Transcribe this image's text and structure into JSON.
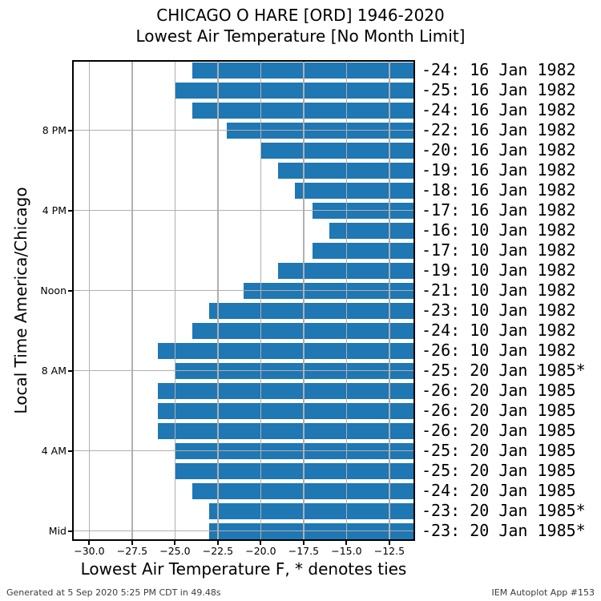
{
  "header": {
    "title": "CHICAGO O HARE [ORD] 1946-2020",
    "subtitle": "Lowest Air Temperature [No Month Limit]"
  },
  "footer": {
    "left": "Generated at 5 Sep 2020 5:25 PM CDT in 49.48s",
    "right": "IEM Autoplot App #153"
  },
  "chart_data": {
    "type": "bar",
    "orientation": "horizontal",
    "title": "CHICAGO O HARE [ORD] 1946-2020",
    "subtitle": "Lowest Air Temperature [No Month Limit]",
    "xlabel": "Lowest Air Temperature F, * denotes ties",
    "ylabel": "Local Time America/Chicago",
    "xlim": [
      -31,
      -11
    ],
    "grid": true,
    "legend": "none",
    "bar_color": "#1f77b4",
    "grid_color": "#b0b0b0",
    "xticks": [
      -30.0,
      -27.5,
      -25.0,
      -22.5,
      -20.0,
      -17.5,
      -15.0,
      -12.5
    ],
    "xtick_labels": [
      "−30.0",
      "−27.5",
      "−25.0",
      "−22.5",
      "−20.0",
      "−17.5",
      "−15.0",
      "−12.5"
    ],
    "yticks": [
      {
        "hour": 20,
        "label": "8 PM"
      },
      {
        "hour": 16,
        "label": "4 PM"
      },
      {
        "hour": 12,
        "label": "Noon"
      },
      {
        "hour": 8,
        "label": "8 AM"
      },
      {
        "hour": 4,
        "label": "4 AM"
      },
      {
        "hour": 0,
        "label": "Mid"
      }
    ],
    "rows": [
      {
        "hour": 23,
        "value": -24,
        "label": "-24: 16 Jan 1982"
      },
      {
        "hour": 22,
        "value": -25,
        "label": "-25: 16 Jan 1982"
      },
      {
        "hour": 21,
        "value": -24,
        "label": "-24: 16 Jan 1982"
      },
      {
        "hour": 20,
        "value": -22,
        "label": "-22: 16 Jan 1982"
      },
      {
        "hour": 19,
        "value": -20,
        "label": "-20: 16 Jan 1982"
      },
      {
        "hour": 18,
        "value": -19,
        "label": "-19: 16 Jan 1982"
      },
      {
        "hour": 17,
        "value": -18,
        "label": "-18: 16 Jan 1982"
      },
      {
        "hour": 16,
        "value": -17,
        "label": "-17: 16 Jan 1982"
      },
      {
        "hour": 15,
        "value": -16,
        "label": "-16: 10 Jan 1982"
      },
      {
        "hour": 14,
        "value": -17,
        "label": "-17: 10 Jan 1982"
      },
      {
        "hour": 13,
        "value": -19,
        "label": "-19: 10 Jan 1982"
      },
      {
        "hour": 12,
        "value": -21,
        "label": "-21: 10 Jan 1982"
      },
      {
        "hour": 11,
        "value": -23,
        "label": "-23: 10 Jan 1982"
      },
      {
        "hour": 10,
        "value": -24,
        "label": "-24: 10 Jan 1982"
      },
      {
        "hour": 9,
        "value": -26,
        "label": "-26: 10 Jan 1982"
      },
      {
        "hour": 8,
        "value": -25,
        "label": "-25: 20 Jan 1985*"
      },
      {
        "hour": 7,
        "value": -26,
        "label": "-26: 20 Jan 1985"
      },
      {
        "hour": 6,
        "value": -26,
        "label": "-26: 20 Jan 1985"
      },
      {
        "hour": 5,
        "value": -26,
        "label": "-26: 20 Jan 1985"
      },
      {
        "hour": 4,
        "value": -25,
        "label": "-25: 20 Jan 1985"
      },
      {
        "hour": 3,
        "value": -25,
        "label": "-25: 20 Jan 1985"
      },
      {
        "hour": 2,
        "value": -24,
        "label": "-24: 20 Jan 1985"
      },
      {
        "hour": 1,
        "value": -23,
        "label": "-23: 20 Jan 1985*"
      },
      {
        "hour": 0,
        "value": -23,
        "label": "-23: 20 Jan 1985*"
      }
    ]
  }
}
